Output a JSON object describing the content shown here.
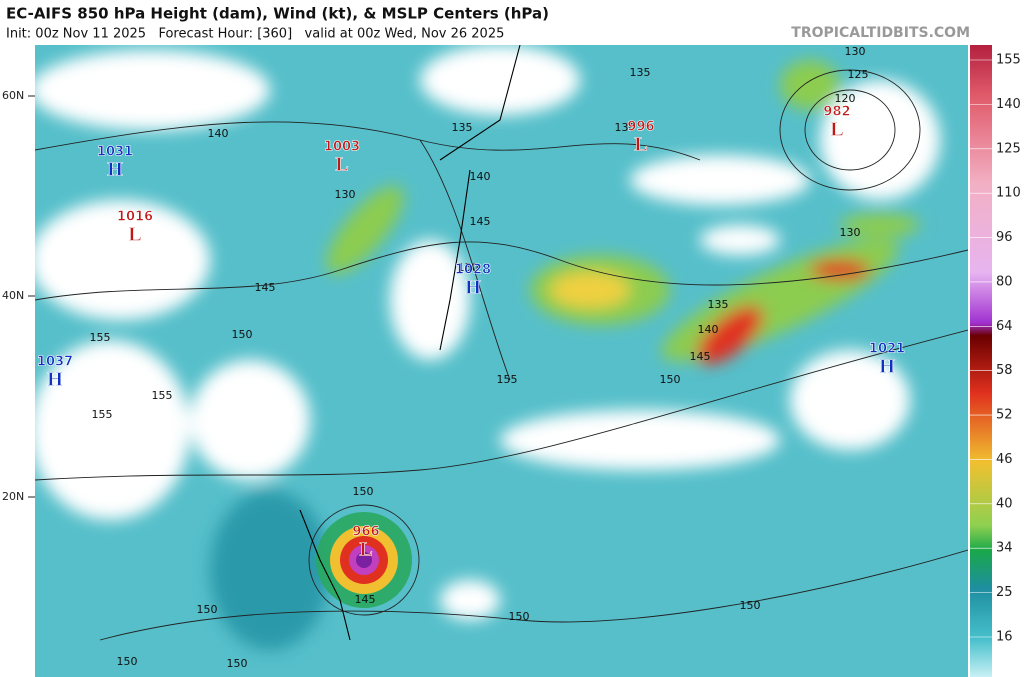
{
  "header": {
    "title": "EC-AIFS 850 hPa Height (dam), Wind (kt), & MSLP Centers (hPa)",
    "subtitle": "Init: 00z Nov 11 2025   Forecast Hour: [360]   valid at 00z Wed, Nov 26 2025",
    "watermark": "TROPICALTIDBITS.COM"
  },
  "latitude_labels": [
    "60N",
    "40N",
    "20N"
  ],
  "pressure_centers": [
    {
      "value": 1031,
      "symbol": "H"
    },
    {
      "value": 1016,
      "symbol": "L"
    },
    {
      "value": 1003,
      "symbol": "L"
    },
    {
      "value": 1028,
      "symbol": "H"
    },
    {
      "value": 996,
      "symbol": "L"
    },
    {
      "value": 982,
      "symbol": "L"
    },
    {
      "value": 1037,
      "symbol": "H"
    },
    {
      "value": 1021,
      "symbol": "H"
    },
    {
      "value": 966,
      "symbol": "L"
    }
  ],
  "contour_labels": [
    135,
    135,
    130,
    140,
    130,
    140,
    145,
    145,
    150,
    150,
    155,
    135,
    140,
    145,
    150,
    155,
    130,
    125,
    120,
    130,
    155,
    155,
    150,
    145,
    150,
    150,
    150,
    150,
    150
  ],
  "colorbar": {
    "labels": [
      155,
      140,
      125,
      110,
      96,
      80,
      64,
      58,
      52,
      46,
      40,
      34,
      25,
      16
    ]
  }
}
